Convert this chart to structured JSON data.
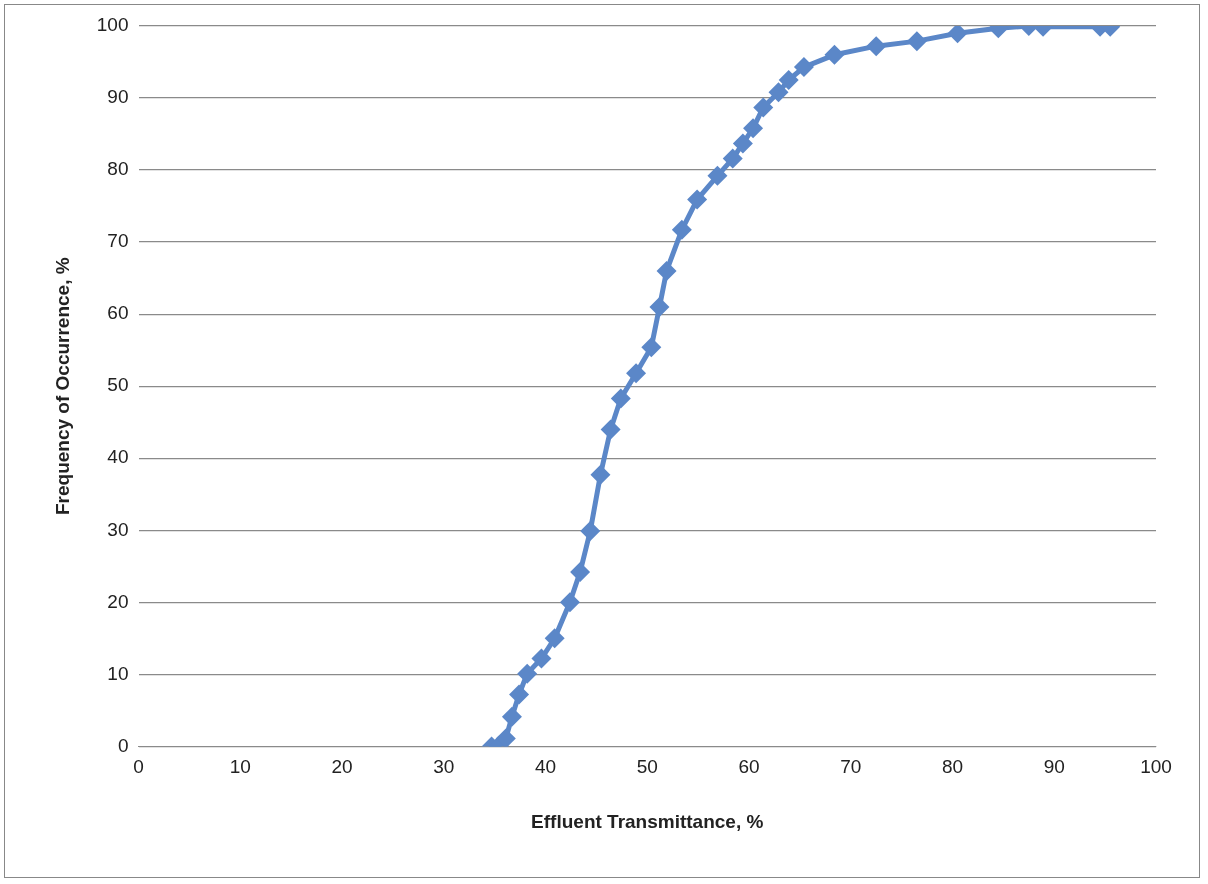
{
  "chart_data": {
    "type": "line",
    "xlabel": "Effluent Transmittance, %",
    "ylabel": "Frequency of Occurrence, %",
    "x": [
      34.7,
      35.4,
      36.1,
      36.7,
      37.4,
      38.2,
      39.6,
      40.9,
      42.4,
      43.4,
      44.4,
      45.4,
      46.4,
      47.4,
      48.9,
      50.4,
      51.2,
      51.9,
      53.4,
      54.9,
      56.9,
      58.4,
      59.4,
      60.4,
      61.4,
      62.9,
      63.9,
      65.4,
      68.4,
      72.5,
      76.5,
      80.5,
      84.5,
      87.5,
      88.9,
      94.5,
      95.5
    ],
    "values": [
      0,
      0.1,
      1.1,
      4.1,
      7.2,
      10.1,
      12.2,
      15,
      20,
      24.2,
      29.9,
      37.7,
      44,
      48.3,
      51.8,
      55.4,
      61,
      66,
      71.7,
      75.9,
      79.2,
      81.6,
      83.7,
      85.8,
      88.7,
      90.8,
      92.5,
      94.3,
      96,
      97.2,
      97.9,
      99,
      99.7,
      100,
      99.9,
      99.9,
      99.9
    ],
    "color": "#5b87c8",
    "marker": "diamond",
    "line_style": "solid",
    "grid": "y",
    "xlim": [
      0,
      100
    ],
    "xticks": [
      0,
      10,
      20,
      30,
      40,
      50,
      60,
      70,
      80,
      90,
      100
    ],
    "ylim": [
      0,
      100
    ],
    "yticks": [
      0,
      10,
      20,
      30,
      40,
      50,
      60,
      70,
      80,
      90,
      100
    ]
  }
}
